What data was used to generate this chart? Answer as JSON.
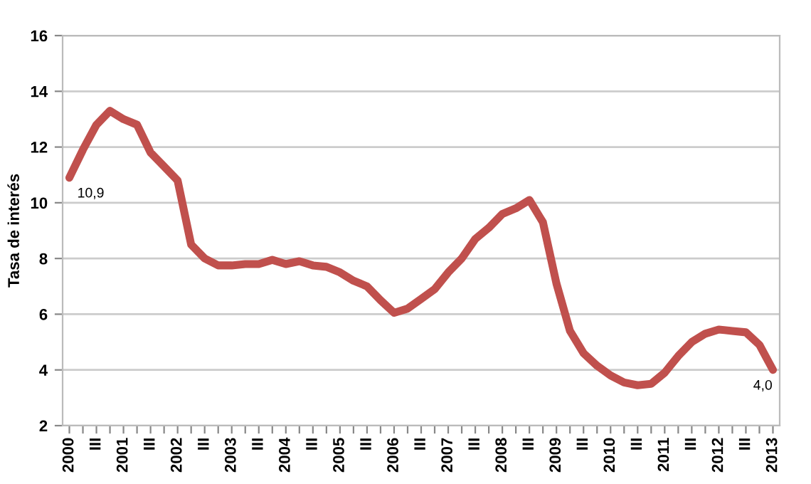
{
  "chart_data": {
    "type": "line",
    "ylabel": "Tasa de interés",
    "categories": [
      "2000",
      null,
      "III",
      null,
      "2001",
      null,
      "III",
      null,
      "2002",
      null,
      "III",
      null,
      "2003",
      null,
      "III",
      null,
      "2004",
      null,
      "III",
      null,
      "2005",
      null,
      "III",
      null,
      "2006",
      null,
      "III",
      null,
      "2007",
      null,
      "III",
      null,
      "2008",
      null,
      "III",
      null,
      "2009",
      null,
      "III",
      null,
      "2010",
      null,
      "III",
      null,
      "2011",
      null,
      "III",
      null,
      "2012",
      null,
      "III",
      null,
      "2013"
    ],
    "series": [
      {
        "color": "#c0504d",
        "values": [
          10.9,
          11.9,
          12.8,
          13.3,
          13.0,
          12.8,
          11.8,
          11.3,
          10.8,
          8.5,
          8.0,
          7.75,
          7.75,
          7.8,
          7.8,
          7.95,
          7.8,
          7.9,
          7.75,
          7.7,
          7.5,
          7.2,
          7.0,
          6.5,
          6.05,
          6.2,
          6.55,
          6.9,
          7.5,
          8.0,
          8.7,
          9.1,
          9.6,
          9.8,
          10.1,
          9.3,
          7.1,
          5.4,
          4.6,
          4.15,
          3.8,
          3.55,
          3.45,
          3.5,
          3.9,
          4.5,
          5.0,
          5.3,
          5.45,
          5.4,
          5.35,
          4.9,
          4.0
        ]
      }
    ],
    "annotations": [
      {
        "text": "10,9",
        "x": "2000",
        "y": 10.9
      },
      {
        "text": "4,0",
        "x": "2013",
        "y": 4.0
      }
    ],
    "ylim": [
      2,
      16
    ],
    "yticks": [
      2,
      4,
      6,
      8,
      10,
      12,
      14,
      16
    ],
    "grid": "y",
    "legend": false,
    "marker": "none",
    "line_style": "solid"
  }
}
